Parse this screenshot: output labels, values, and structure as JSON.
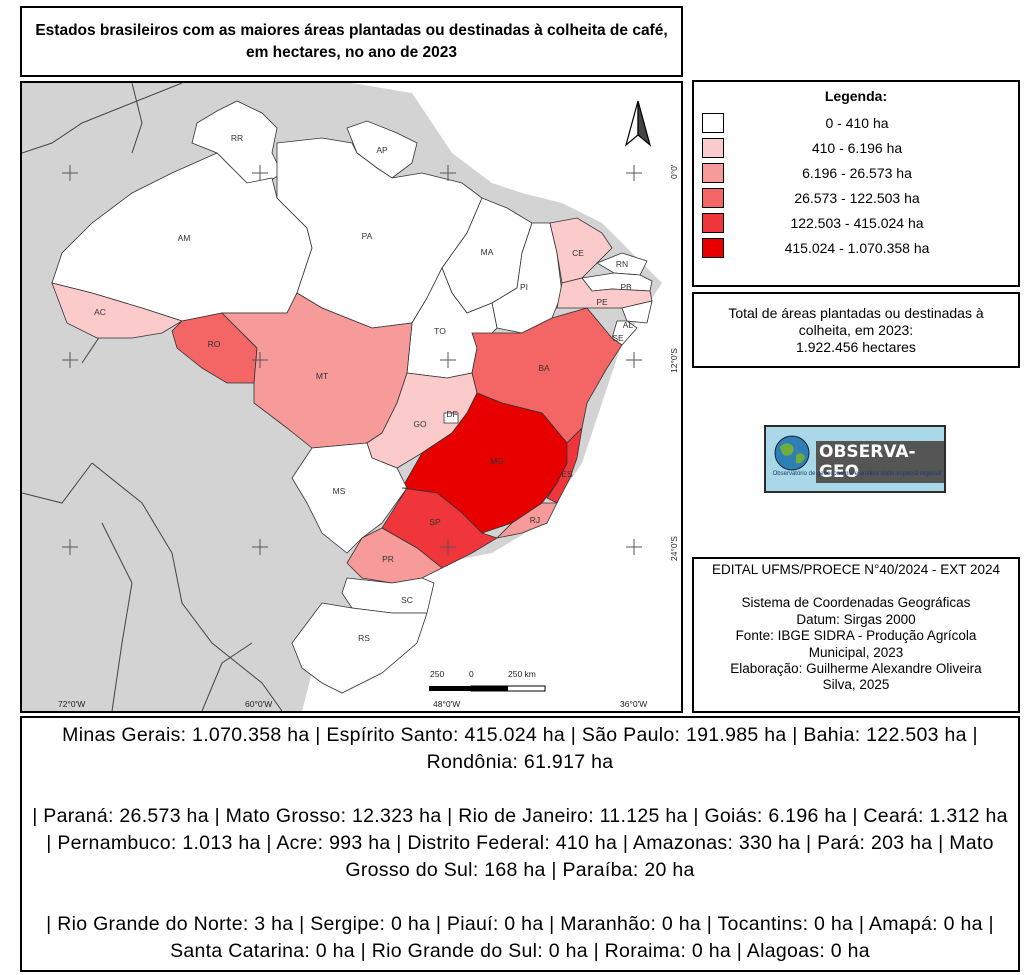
{
  "title": "Estados brasileiros com as maiores áreas plantadas ou destinadas à colheita de café, em hectares, no ano de 2023",
  "legend": {
    "title": "Legenda:",
    "classes": [
      {
        "label": "0 - 410 ha",
        "color": "#ffffff"
      },
      {
        "label": "410 - 6.196 ha",
        "color": "#fbcaca"
      },
      {
        "label": "6.196 - 26.573 ha",
        "color": "#f79a9a"
      },
      {
        "label": "26.573 - 122.503 ha",
        "color": "#f46565"
      },
      {
        "label": "122.503 - 415.024 ha",
        "color": "#f0363a"
      },
      {
        "label": "415.024 - 1.070.358 ha",
        "color": "#e80000"
      }
    ]
  },
  "total": {
    "line1": "Total de áreas plantadas ou destinadas à",
    "line2": "colheita, em 2023:",
    "line3": "1.922.456 hectares"
  },
  "logo": {
    "name": "OBSERVA-GEO",
    "subtitle": "Observatório de geoeconomia e análise sócio-espacial regional"
  },
  "info": {
    "edital": "EDITAL UFMS/PROECE N°40/2024 - EXT 2024",
    "sistema": "Sistema de Coordenadas Geográficas",
    "datum": "Datum: Sirgas 2000",
    "fonte1": "Fonte: IBGE SIDRA - Produção Agrícola",
    "fonte2": "Municipal, 2023",
    "elab1": "Elaboração: Guilherme Alexandre Oliveira",
    "elab2": "Silva, 2025"
  },
  "bottom": {
    "p1": "Minas Gerais: 1.070.358 ha | Espírito Santo: 415.024 ha | São Paulo: 191.985 ha | Bahia: 122.503 ha | Rondônia: 61.917 ha",
    "p2": "| Paraná: 26.573 ha | Mato Grosso: 12.323 ha | Rio de Janeiro: 11.125 ha | Goiás: 6.196 ha | Ceará: 1.312 ha | Pernambuco: 1.013 ha | Acre: 993 ha | Distrito Federal: 410 ha | Amazonas: 330 ha | Pará: 203 ha | Mato Grosso do Sul: 168 ha | Paraíba: 20 ha",
    "p3": "| Rio Grande do Norte: 3 ha | Sergipe: 0 ha | Piauí: 0 ha | Maranhão: 0 ha | Tocantins: 0 ha | Amapá: 0 ha | Santa Catarina: 0 ha | Rio Grande do Sul: 0 ha | Roraima: 0 ha | Alagoas: 0 ha"
  },
  "map": {
    "states": {
      "RR": "RR",
      "AP": "AP",
      "AM": "AM",
      "PA": "PA",
      "MA": "MA",
      "CE": "CE",
      "RN": "RN",
      "PB": "PB",
      "PE": "PE",
      "PI": "PI",
      "AL": "AL",
      "SE": "SE",
      "AC": "AC",
      "RO": "RO",
      "TO": "TO",
      "BA": "BA",
      "MT": "MT",
      "GO": "GO",
      "DF": "DF",
      "MG": "MG",
      "ES": "ES",
      "MS": "MS",
      "SP": "SP",
      "RJ": "RJ",
      "PR": "PR",
      "SC": "SC",
      "RS": "RS"
    },
    "lon_labels": [
      "72°0'W",
      "60°0'W",
      "48°0'W",
      "36°0'W"
    ],
    "lat_labels": [
      "0°0'",
      "12°0'S",
      "24°0'S"
    ],
    "scale": {
      "left": "250",
      "mid": "0",
      "right": "250 km"
    }
  }
}
